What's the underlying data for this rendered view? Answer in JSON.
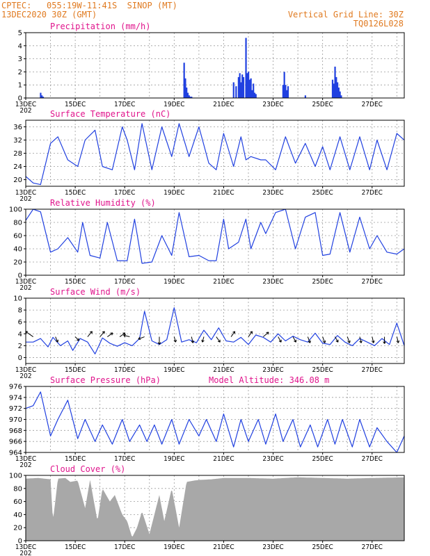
{
  "header": {
    "line1_left": "CPTEC:   055:19W-11:41S  SINOP (MT)",
    "line2_left": "13DEC2020 30Z (GMT)",
    "line1_right": "Vertical Grid Line: 30Z",
    "line2_right": "TQ0126L028"
  },
  "model_altitude": "Model Altitude: 346.08 m",
  "colors": {
    "header": "#e07a20",
    "title": "#e0148c",
    "line": "#2040e0",
    "bar": "#2040e0",
    "cloud": "#a8a8a8",
    "axis": "#000000"
  },
  "x_axis": {
    "tick_labels": [
      "13DEC",
      "15DEC",
      "17DEC",
      "19DEC",
      "21DEC",
      "23DEC",
      "25DEC",
      "27DEC"
    ],
    "first_label_extra": "202",
    "range_days": [
      0,
      15.3
    ]
  },
  "chart_data": [
    {
      "type": "bar",
      "title": "Precipitation (mm/h)",
      "ylim": [
        0,
        5
      ],
      "yticks": [
        "0",
        "1",
        "2",
        "3",
        "4",
        "5"
      ],
      "x_days": [
        0.6,
        0.65,
        0.7,
        6.4,
        6.45,
        6.5,
        6.55,
        6.6,
        6.65,
        6.7,
        8.4,
        8.5,
        8.6,
        8.65,
        8.7,
        8.75,
        8.8,
        8.9,
        8.95,
        9.0,
        9.05,
        9.1,
        9.15,
        9.2,
        9.25,
        9.3,
        10.4,
        10.45,
        10.5,
        10.55,
        10.6,
        11.3,
        12.4,
        12.45,
        12.5,
        12.55,
        12.6,
        12.65,
        12.7,
        12.75
      ],
      "values": [
        0.4,
        0.2,
        0.1,
        2.7,
        1.5,
        0.8,
        0.4,
        0.2,
        0.1,
        0.1,
        1.2,
        0.9,
        1.6,
        1.9,
        1.2,
        1.8,
        1.6,
        4.6,
        1.9,
        2.0,
        1.4,
        1.5,
        0.6,
        1.1,
        0.4,
        0.3,
        1.0,
        2.0,
        1.0,
        0.6,
        0.9,
        0.2,
        1.4,
        1.1,
        2.4,
        1.6,
        1.2,
        0.8,
        0.5,
        0.2
      ]
    },
    {
      "type": "line",
      "title": "Surface Temperature (nC)",
      "ylim": [
        18,
        38
      ],
      "yticks": [
        "20",
        "24",
        "28",
        "32",
        "36"
      ],
      "x_days": [
        0.0,
        0.3,
        0.6,
        1.0,
        1.3,
        1.7,
        2.1,
        2.4,
        2.8,
        3.1,
        3.5,
        3.9,
        4.1,
        4.4,
        4.7,
        5.1,
        5.5,
        5.9,
        6.2,
        6.6,
        7.0,
        7.4,
        7.7,
        8.0,
        8.4,
        8.7,
        8.9,
        9.1,
        9.5,
        9.7,
        10.1,
        10.5,
        10.9,
        11.3,
        11.7,
        12.0,
        12.3,
        12.7,
        13.1,
        13.5,
        13.9,
        14.2,
        14.6,
        15.0,
        15.3
      ],
      "values": [
        21,
        19,
        18.5,
        31,
        33,
        26,
        24,
        32,
        35,
        24,
        23,
        36,
        32,
        23,
        37,
        23,
        36,
        27,
        37,
        27,
        36,
        25,
        23,
        34,
        24,
        33,
        26,
        27,
        26,
        26,
        23,
        33,
        25,
        31,
        24,
        30,
        23,
        33,
        23,
        33,
        23,
        32,
        23,
        34,
        32
      ]
    },
    {
      "type": "line",
      "title": "Relative Humidity (%)",
      "ylim": [
        0,
        100
      ],
      "yticks": [
        "0",
        "20",
        "40",
        "60",
        "80",
        "100"
      ],
      "x_days": [
        0.0,
        0.3,
        0.6,
        1.0,
        1.3,
        1.7,
        2.1,
        2.3,
        2.6,
        3.0,
        3.3,
        3.7,
        4.1,
        4.4,
        4.7,
        5.1,
        5.5,
        5.9,
        6.2,
        6.6,
        7.0,
        7.4,
        7.7,
        8.0,
        8.2,
        8.6,
        8.9,
        9.1,
        9.5,
        9.7,
        10.1,
        10.5,
        10.9,
        11.3,
        11.7,
        12.0,
        12.3,
        12.7,
        13.1,
        13.5,
        13.9,
        14.2,
        14.6,
        15.0,
        15.3
      ],
      "values": [
        83,
        100,
        96,
        35,
        40,
        57,
        35,
        80,
        30,
        26,
        80,
        22,
        22,
        85,
        18,
        20,
        60,
        30,
        95,
        28,
        30,
        22,
        22,
        85,
        40,
        50,
        85,
        40,
        80,
        63,
        95,
        100,
        40,
        88,
        95,
        30,
        32,
        95,
        35,
        88,
        40,
        60,
        35,
        32,
        40
      ]
    },
    {
      "type": "line",
      "title": "Surface Wind (m/s)",
      "ylim": [
        -1,
        10
      ],
      "yticks": [
        "0",
        "2",
        "4",
        "6",
        "8",
        "10"
      ],
      "x_days": [
        0.0,
        0.3,
        0.6,
        0.9,
        1.1,
        1.4,
        1.7,
        1.9,
        2.2,
        2.5,
        2.8,
        3.1,
        3.4,
        3.7,
        4.0,
        4.3,
        4.6,
        4.8,
        5.1,
        5.4,
        5.7,
        6.0,
        6.3,
        6.6,
        6.9,
        7.2,
        7.5,
        7.8,
        8.1,
        8.4,
        8.7,
        9.0,
        9.3,
        9.6,
        9.9,
        10.2,
        10.5,
        10.8,
        11.1,
        11.4,
        11.7,
        12.0,
        12.3,
        12.6,
        12.9,
        13.2,
        13.5,
        13.8,
        14.1,
        14.4,
        14.7,
        15.0,
        15.3
      ],
      "values": [
        2.6,
        2.6,
        3.2,
        1.8,
        3.4,
        2.0,
        2.8,
        1.2,
        3.2,
        2.6,
        0.6,
        3.3,
        2.4,
        1.9,
        2.5,
        2.0,
        3.2,
        7.8,
        2.8,
        2.2,
        3.0,
        8.4,
        2.6,
        3.0,
        2.5,
        4.6,
        3.0,
        5.0,
        2.8,
        2.6,
        3.4,
        2.2,
        3.8,
        3.4,
        2.6,
        4.0,
        2.8,
        3.6,
        3.0,
        2.6,
        4.1,
        2.4,
        2.2,
        3.7,
        2.6,
        2.0,
        3.2,
        2.6,
        2.0,
        3.2,
        2.2,
        5.8,
        2.0
      ],
      "vectors": [
        {
          "x": 0.3,
          "u": -1.0,
          "v": 0.7
        },
        {
          "x": 1.2,
          "u": 0.3,
          "v": -0.7
        },
        {
          "x": 2.0,
          "u": 0.5,
          "v": -0.5
        },
        {
          "x": 2.5,
          "u": 0.6,
          "v": 0.7
        },
        {
          "x": 3.0,
          "u": 0.6,
          "v": 0.7
        },
        {
          "x": 3.3,
          "u": 0.7,
          "v": 0.5
        },
        {
          "x": 3.8,
          "u": 0.7,
          "v": 0.5
        },
        {
          "x": 4.2,
          "u": -0.8,
          "v": 0.2
        },
        {
          "x": 4.8,
          "u": -0.8,
          "v": -0.3
        },
        {
          "x": 5.4,
          "u": 0.0,
          "v": -1.0
        },
        {
          "x": 6.0,
          "u": 0.2,
          "v": -0.7
        },
        {
          "x": 6.7,
          "u": 0.2,
          "v": -0.8
        },
        {
          "x": 7.2,
          "u": -0.2,
          "v": -0.7
        },
        {
          "x": 7.7,
          "u": 0.5,
          "v": -0.7
        },
        {
          "x": 8.3,
          "u": 0.5,
          "v": 0.7
        },
        {
          "x": 9.0,
          "u": 0.5,
          "v": 0.7
        },
        {
          "x": 9.6,
          "u": 0.7,
          "v": 0.6
        },
        {
          "x": 10.2,
          "u": 0.4,
          "v": -0.7
        },
        {
          "x": 10.8,
          "u": 0.4,
          "v": -0.7
        },
        {
          "x": 11.4,
          "u": 0.3,
          "v": -0.8
        },
        {
          "x": 12.0,
          "u": 0.3,
          "v": -0.8
        },
        {
          "x": 12.5,
          "u": 0.4,
          "v": -0.7
        },
        {
          "x": 13.0,
          "u": 0.3,
          "v": -0.8
        },
        {
          "x": 13.5,
          "u": 0.2,
          "v": -0.8
        },
        {
          "x": 14.0,
          "u": 0.2,
          "v": -0.8
        },
        {
          "x": 14.5,
          "u": 0.0,
          "v": -0.9
        },
        {
          "x": 15.0,
          "u": 0.2,
          "v": -0.8
        }
      ]
    },
    {
      "type": "line",
      "title": "Surface Pressure (hPa)",
      "ylim": [
        964,
        976
      ],
      "yticks": [
        "964",
        "966",
        "968",
        "970",
        "972",
        "974",
        "976"
      ],
      "x_days": [
        0.0,
        0.3,
        0.6,
        1.0,
        1.3,
        1.7,
        2.1,
        2.4,
        2.8,
        3.1,
        3.5,
        3.9,
        4.2,
        4.6,
        4.9,
        5.2,
        5.5,
        5.9,
        6.2,
        6.6,
        7.0,
        7.3,
        7.7,
        8.0,
        8.4,
        8.7,
        9.0,
        9.4,
        9.7,
        10.1,
        10.4,
        10.8,
        11.1,
        11.5,
        11.8,
        12.2,
        12.5,
        12.8,
        13.2,
        13.5,
        13.9,
        14.2,
        14.6,
        15.0,
        15.3
      ],
      "values": [
        972,
        972.5,
        975,
        967,
        970,
        973.5,
        966.5,
        970,
        966,
        969,
        965.5,
        970,
        966,
        969,
        966,
        969,
        965.5,
        970,
        965.5,
        970,
        967,
        970,
        966,
        971,
        965,
        970,
        966,
        970,
        965.5,
        971,
        966,
        970,
        965,
        969,
        965,
        970,
        965.5,
        970,
        965,
        970,
        965,
        968.5,
        966,
        964,
        967
      ]
    },
    {
      "type": "area",
      "title": "Cloud Cover (%)",
      "ylim": [
        0,
        100
      ],
      "yticks": [
        "0",
        "20",
        "40",
        "60",
        "80",
        "100"
      ],
      "x_days": [
        0.0,
        0.5,
        1.0,
        1.1,
        1.3,
        1.6,
        1.8,
        2.1,
        2.4,
        2.6,
        2.9,
        3.1,
        3.4,
        3.6,
        3.9,
        4.1,
        4.3,
        4.5,
        4.7,
        5.0,
        5.2,
        5.4,
        5.6,
        5.9,
        6.2,
        6.5,
        6.8,
        7.0,
        7.5,
        8.0,
        9.0,
        10.0,
        11.0,
        12.0,
        13.0,
        14.0,
        15.3
      ],
      "values": [
        95,
        96,
        94,
        30,
        95,
        96,
        90,
        92,
        50,
        93,
        30,
        80,
        60,
        70,
        40,
        30,
        5,
        20,
        45,
        10,
        40,
        70,
        30,
        80,
        20,
        90,
        92,
        93,
        94,
        96,
        96,
        95,
        97,
        96,
        95,
        96,
        97
      ]
    }
  ]
}
